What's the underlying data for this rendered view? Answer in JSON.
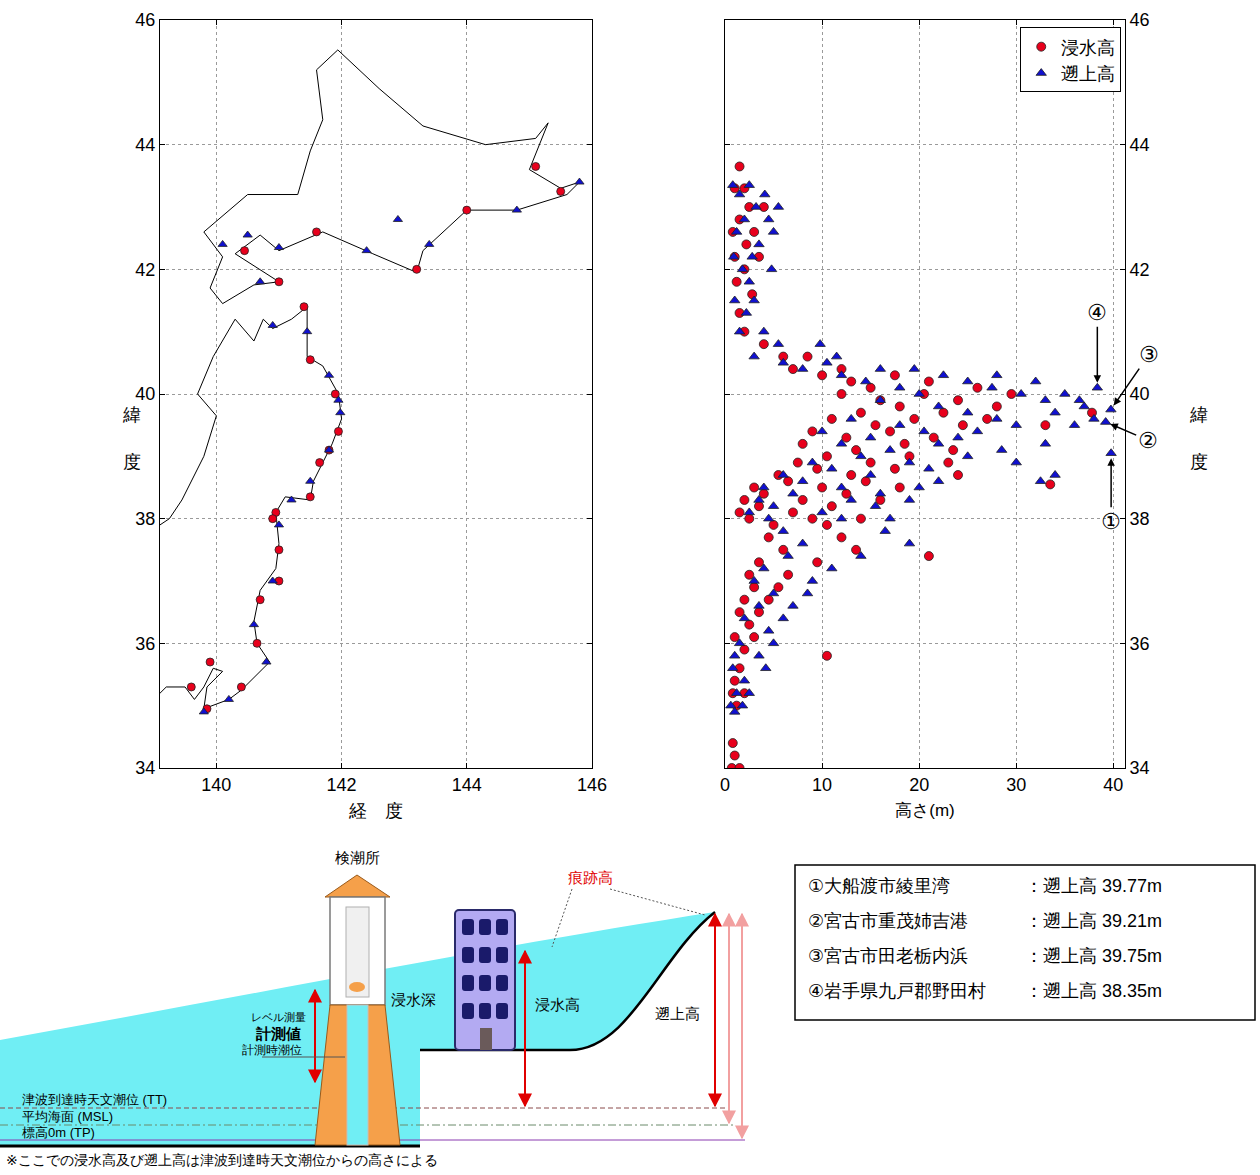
{
  "chart_data": [
    {
      "type": "scatter",
      "x_label": "経　度",
      "y_label": "緯　度",
      "xlim": [
        139.1,
        146
      ],
      "xticks": [
        140,
        142,
        144,
        146
      ],
      "ylim": [
        34,
        46
      ],
      "yticks": [
        34,
        36,
        38,
        40,
        42,
        44,
        46
      ],
      "grid": true,
      "coastline": [
        {
          "x": [
            141.94,
            142.6,
            143.3,
            144.3,
            145.1,
            145.3,
            145.0,
            145.5,
            145.8,
            145.6,
            144.8,
            144.0,
            143.3,
            143.2,
            142.5,
            141.7,
            141.0,
            140.7,
            140.3,
            141.0,
            140.6,
            140.1,
            139.9,
            140.1,
            139.8,
            140.5,
            141.3,
            141.5,
            141.7,
            141.6,
            141.94
          ],
          "y": [
            45.52,
            44.9,
            44.3,
            44.0,
            44.1,
            44.35,
            43.6,
            43.3,
            43.4,
            43.2,
            42.95,
            42.95,
            42.3,
            41.95,
            42.25,
            42.6,
            42.3,
            42.55,
            42.25,
            41.8,
            41.75,
            41.45,
            41.7,
            42.2,
            42.6,
            43.2,
            43.2,
            43.9,
            44.4,
            45.2,
            45.52
          ]
        },
        {
          "x": [
            139.1,
            139.2,
            139.5,
            139.65,
            139.8,
            139.95,
            140.1,
            139.85,
            139.8,
            140.2,
            140.4,
            140.85,
            140.65,
            140.6,
            140.7,
            140.95,
            141.0,
            140.95,
            141.1,
            141.5,
            141.55,
            141.7,
            141.85,
            142.0,
            141.95,
            141.7,
            141.45,
            141.45,
            141.2,
            140.9,
            140.75,
            140.6,
            140.3,
            139.95,
            139.7,
            140.0,
            139.8,
            139.45,
            139.25,
            139.1
          ],
          "y": [
            35.2,
            35.3,
            35.3,
            35.1,
            35.3,
            35.6,
            35.55,
            35.3,
            34.95,
            35.1,
            35.25,
            35.7,
            36.0,
            36.35,
            36.85,
            37.2,
            37.6,
            38.1,
            38.35,
            38.3,
            38.6,
            38.9,
            39.2,
            39.6,
            40.0,
            40.45,
            40.6,
            41.4,
            41.2,
            41.05,
            41.2,
            40.85,
            41.2,
            40.6,
            40.0,
            39.65,
            39.0,
            38.3,
            38.0,
            37.9
          ]
        }
      ],
      "series": [
        {
          "color": "#e8001c",
          "marker": "circle",
          "x": [
            139.6,
            139.9,
            139.85,
            140.4,
            140.65,
            140.7,
            141.0,
            140.95,
            141.5,
            141.65,
            141.95,
            141.9,
            141.5,
            141.4,
            141.0,
            140.45,
            141.6,
            143.2,
            144.0,
            145.5,
            145.1,
            140.9,
            141.0,
            141.8
          ],
          "y": [
            35.3,
            35.7,
            34.95,
            35.3,
            36.0,
            36.7,
            37.5,
            38.1,
            38.35,
            38.9,
            39.4,
            40.0,
            40.55,
            41.4,
            41.8,
            42.3,
            42.6,
            42.0,
            42.95,
            43.25,
            43.65,
            38.0,
            37.0,
            39.1
          ]
        },
        {
          "color": "#1010d0",
          "marker": "triangle-up",
          "x": [
            139.8,
            140.2,
            140.8,
            140.6,
            140.9,
            141.0,
            141.2,
            141.5,
            141.8,
            141.98,
            141.8,
            141.45,
            140.9,
            140.7,
            140.5,
            141.0,
            142.4,
            143.4,
            144.8,
            145.8,
            142.9,
            141.95,
            140.1
          ],
          "y": [
            34.9,
            35.1,
            35.7,
            36.3,
            37.0,
            37.9,
            38.3,
            38.6,
            39.1,
            39.7,
            40.3,
            41.0,
            41.1,
            41.8,
            42.55,
            42.35,
            42.3,
            42.4,
            42.95,
            43.4,
            42.8,
            39.9,
            42.4
          ]
        }
      ]
    },
    {
      "type": "scatter",
      "x_label": "高さ(m)",
      "y_label": "緯　度",
      "xlim": [
        0,
        41.2
      ],
      "xticks": [
        0,
        10,
        20,
        30,
        40
      ],
      "ylim": [
        34,
        46
      ],
      "yticks": [
        34,
        36,
        38,
        40,
        42,
        44,
        46
      ],
      "grid": true,
      "legend": "top right",
      "series": [
        {
          "name": "浸水高",
          "color": "#e8001c",
          "marker": "circle",
          "x": [
            1.5,
            1.0,
            2.0,
            2.5,
            4.0,
            1.5,
            0.8,
            3.0,
            2.2,
            1.0,
            3.5,
            2.0,
            1.2,
            2.8,
            1.5,
            2.0,
            4.0,
            6.0,
            8.5,
            7.0,
            12.0,
            10.0,
            17.5,
            13.0,
            21.0,
            15.0,
            26.0,
            12.0,
            20.5,
            29.5,
            16.0,
            24.0,
            18.0,
            28.0,
            14.0,
            22.5,
            37.8,
            11.0,
            19.5,
            27.0,
            15.5,
            24.5,
            33.0,
            9.0,
            17.0,
            12.5,
            21.5,
            8.0,
            18.5,
            13.5,
            23.5,
            10.5,
            19.0,
            7.5,
            15.0,
            23.0,
            9.5,
            17.5,
            5.5,
            13.0,
            24.0,
            6.5,
            14.5,
            33.5,
            3.0,
            10.0,
            18.0,
            4.0,
            12.5,
            2.0,
            8.0,
            16.0,
            3.5,
            11.0,
            1.5,
            7.0,
            2.5,
            9.0,
            14.0,
            5.0,
            10.5,
            4.5,
            12.0,
            6.0,
            13.5,
            21.0,
            3.5,
            9.5,
            2.5,
            6.5,
            3.0,
            5.5,
            2.0,
            4.5,
            1.5,
            3.5,
            2.5,
            1.0,
            3.0,
            2.0,
            10.5,
            1.5,
            1.0,
            0.8,
            2.0,
            1.2,
            0.8,
            1.0,
            0.7,
            1.5
          ],
          "y": [
            43.65,
            43.3,
            43.3,
            43.0,
            43.0,
            42.8,
            42.6,
            42.6,
            42.4,
            42.2,
            42.2,
            42.0,
            41.8,
            41.6,
            41.3,
            41.0,
            40.8,
            40.6,
            40.6,
            40.4,
            40.4,
            40.3,
            40.3,
            40.2,
            40.2,
            40.1,
            40.1,
            40.0,
            40.0,
            40.0,
            39.9,
            39.9,
            39.8,
            39.8,
            39.7,
            39.7,
            39.7,
            39.6,
            39.6,
            39.6,
            39.5,
            39.5,
            39.5,
            39.4,
            39.4,
            39.3,
            39.3,
            39.2,
            39.2,
            39.1,
            39.1,
            39.0,
            39.0,
            38.9,
            38.9,
            38.9,
            38.8,
            38.8,
            38.7,
            38.7,
            38.7,
            38.6,
            38.6,
            38.55,
            38.5,
            38.5,
            38.5,
            38.4,
            38.4,
            38.3,
            38.3,
            38.3,
            38.2,
            38.2,
            38.1,
            38.1,
            38.0,
            38.0,
            38.0,
            37.9,
            37.9,
            37.7,
            37.7,
            37.5,
            37.5,
            37.4,
            37.3,
            37.3,
            37.1,
            37.1,
            36.9,
            36.9,
            36.7,
            36.7,
            36.5,
            36.5,
            36.3,
            36.1,
            36.1,
            35.9,
            35.8,
            35.6,
            35.4,
            35.2,
            35.2,
            35.0,
            34.4,
            34.2,
            34.0,
            34.0
          ]
        },
        {
          "name": "遡上高",
          "color": "#1010d0",
          "marker": "triangle-up",
          "x": [
            0.8,
            2.5,
            1.5,
            4.1,
            3.2,
            5.5,
            2.0,
            4.5,
            1.2,
            5.0,
            3.5,
            0.9,
            2.8,
            1.8,
            4.8,
            2.5,
            1.0,
            3.0,
            2.2,
            1.5,
            4.0,
            5.5,
            9.8,
            3.0,
            11.5,
            6.0,
            10.5,
            8.0,
            16.0,
            19.5,
            12.0,
            22.5,
            28.0,
            14.5,
            25.0,
            32.0,
            18.0,
            27.5,
            38.35,
            20.0,
            30.5,
            35.0,
            16.0,
            33.0,
            36.5,
            22.0,
            37.0,
            39.75,
            25.0,
            34.0,
            13.0,
            28.0,
            38.0,
            39.21,
            18.0,
            30.0,
            36.0,
            10.0,
            20.5,
            26.0,
            15.0,
            24.0,
            12.0,
            22.0,
            33.0,
            17.0,
            28.5,
            39.77,
            14.0,
            25.0,
            9.0,
            19.0,
            30.0,
            11.0,
            21.0,
            6.0,
            15.0,
            34.0,
            8.0,
            22.0,
            32.5,
            4.0,
            12.0,
            20.0,
            7.0,
            16.0,
            3.5,
            13.0,
            19.0,
            5.0,
            15.5,
            2.5,
            10.0,
            4.5,
            12.0,
            17.0,
            6.0,
            16.5,
            8.0,
            19.0,
            6.5,
            14.0,
            4.0,
            11.0,
            3.0,
            9.0,
            5.0,
            8.5,
            3.5,
            7.0,
            2.0,
            6.0,
            4.5,
            1.5,
            5.0,
            1.0,
            3.5,
            0.8,
            4.2,
            2.0,
            1.2,
            2.5,
            0.6,
            1.8,
            1.0
          ],
          "y": [
            43.35,
            43.35,
            43.2,
            43.2,
            43.0,
            43.0,
            42.8,
            42.8,
            42.6,
            42.6,
            42.4,
            42.2,
            42.2,
            42.0,
            42.0,
            41.8,
            41.5,
            41.5,
            41.3,
            41.0,
            41.0,
            40.8,
            40.8,
            40.6,
            40.6,
            40.5,
            40.5,
            40.4,
            40.4,
            40.4,
            40.3,
            40.3,
            40.3,
            40.2,
            40.2,
            40.2,
            40.1,
            40.1,
            40.1,
            40.0,
            40.0,
            40.0,
            39.9,
            39.9,
            39.9,
            39.8,
            39.8,
            39.75,
            39.7,
            39.7,
            39.6,
            39.6,
            39.6,
            39.55,
            39.5,
            39.5,
            39.5,
            39.4,
            39.4,
            39.4,
            39.3,
            39.3,
            39.2,
            39.2,
            39.2,
            39.1,
            39.1,
            39.05,
            39.0,
            39.0,
            38.9,
            38.9,
            38.9,
            38.8,
            38.8,
            38.7,
            38.7,
            38.7,
            38.6,
            38.6,
            38.6,
            38.5,
            38.5,
            38.5,
            38.4,
            38.4,
            38.3,
            38.3,
            38.3,
            38.2,
            38.2,
            38.1,
            38.1,
            38.0,
            38.0,
            38.0,
            37.8,
            37.8,
            37.6,
            37.6,
            37.4,
            37.4,
            37.2,
            37.2,
            37.0,
            37.0,
            36.8,
            36.8,
            36.6,
            36.6,
            36.4,
            36.4,
            36.2,
            36.0,
            36.0,
            35.8,
            35.8,
            35.6,
            35.6,
            35.4,
            35.2,
            35.2,
            35.0,
            35.0,
            34.9
          ]
        }
      ],
      "annotations": [
        {
          "text": "①",
          "x": 39.77,
          "y": 39.05
        },
        {
          "text": "②",
          "x": 39.21,
          "y": 39.55
        },
        {
          "text": "③",
          "x": 39.75,
          "y": 39.75
        },
        {
          "text": "④",
          "x": 38.35,
          "y": 40.1
        }
      ]
    }
  ],
  "diagram": {
    "station": "検潮所",
    "survey": "レベル測量",
    "measured": "計測値",
    "tide_at_measure": "計測時潮位",
    "inundation_depth": "浸水深",
    "inundation_height": "浸水高",
    "trace_height": "痕跡高",
    "runup_height": "遡上高",
    "levels": [
      "津波到達時天文潮位 (TT)",
      "平均海面 (MSL)",
      "標高0m (TP)"
    ],
    "footnote": "※ここでの浸水高及び遡上高は津波到達時天文潮位からの高さによる"
  },
  "table": {
    "rows": [
      [
        "①大船渡市綾里湾",
        "：遡上高 39.77m"
      ],
      [
        "②宮古市重茂姉吉港",
        "：遡上高 39.21m"
      ],
      [
        "③宮古市田老栃内浜",
        "：遡上高 39.75m"
      ],
      [
        "④岩手県九戸郡野田村",
        "：遡上高 38.35m"
      ]
    ]
  }
}
